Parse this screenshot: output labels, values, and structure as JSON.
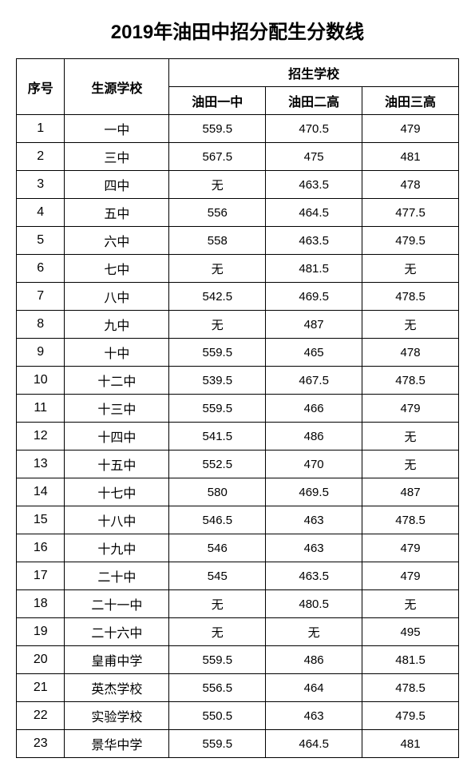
{
  "title": "2019年油田中招分配生分数线",
  "headers": {
    "seq": "序号",
    "source": "生源学校",
    "enroll": "招生学校",
    "cols": [
      "油田一中",
      "油田二高",
      "油田三高"
    ]
  },
  "rows": [
    {
      "seq": "1",
      "src": "一中",
      "c1": "559.5",
      "c2": "470.5",
      "c3": "479"
    },
    {
      "seq": "2",
      "src": "三中",
      "c1": "567.5",
      "c2": "475",
      "c3": "481"
    },
    {
      "seq": "3",
      "src": "四中",
      "c1": "无",
      "c2": "463.5",
      "c3": "478"
    },
    {
      "seq": "4",
      "src": "五中",
      "c1": "556",
      "c2": "464.5",
      "c3": "477.5"
    },
    {
      "seq": "5",
      "src": "六中",
      "c1": "558",
      "c2": "463.5",
      "c3": "479.5"
    },
    {
      "seq": "6",
      "src": "七中",
      "c1": "无",
      "c2": "481.5",
      "c3": "无"
    },
    {
      "seq": "7",
      "src": "八中",
      "c1": "542.5",
      "c2": "469.5",
      "c3": "478.5"
    },
    {
      "seq": "8",
      "src": "九中",
      "c1": "无",
      "c2": "487",
      "c3": "无"
    },
    {
      "seq": "9",
      "src": "十中",
      "c1": "559.5",
      "c2": "465",
      "c3": "478"
    },
    {
      "seq": "10",
      "src": "十二中",
      "c1": "539.5",
      "c2": "467.5",
      "c3": "478.5"
    },
    {
      "seq": "11",
      "src": "十三中",
      "c1": "559.5",
      "c2": "466",
      "c3": "479"
    },
    {
      "seq": "12",
      "src": "十四中",
      "c1": "541.5",
      "c2": "486",
      "c3": "无"
    },
    {
      "seq": "13",
      "src": "十五中",
      "c1": "552.5",
      "c2": "470",
      "c3": "无"
    },
    {
      "seq": "14",
      "src": "十七中",
      "c1": "580",
      "c2": "469.5",
      "c3": "487"
    },
    {
      "seq": "15",
      "src": "十八中",
      "c1": "546.5",
      "c2": "463",
      "c3": "478.5"
    },
    {
      "seq": "16",
      "src": "十九中",
      "c1": "546",
      "c2": "463",
      "c3": "479"
    },
    {
      "seq": "17",
      "src": "二十中",
      "c1": "545",
      "c2": "463.5",
      "c3": "479"
    },
    {
      "seq": "18",
      "src": "二十一中",
      "c1": "无",
      "c2": "480.5",
      "c3": "无"
    },
    {
      "seq": "19",
      "src": "二十六中",
      "c1": "无",
      "c2": "无",
      "c3": "495"
    },
    {
      "seq": "20",
      "src": "皇甫中学",
      "c1": "559.5",
      "c2": "486",
      "c3": "481.5"
    },
    {
      "seq": "21",
      "src": "英杰学校",
      "c1": "556.5",
      "c2": "464",
      "c3": "478.5"
    },
    {
      "seq": "22",
      "src": "实验学校",
      "c1": "550.5",
      "c2": "463",
      "c3": "479.5"
    },
    {
      "seq": "23",
      "src": "景华中学",
      "c1": "559.5",
      "c2": "464.5",
      "c3": "481"
    }
  ],
  "style": {
    "title_fontsize": 24,
    "header_fontsize": 16,
    "cell_fontsize": 15,
    "border_color": "#000000",
    "background_color": "#ffffff",
    "text_color": "#000000"
  }
}
